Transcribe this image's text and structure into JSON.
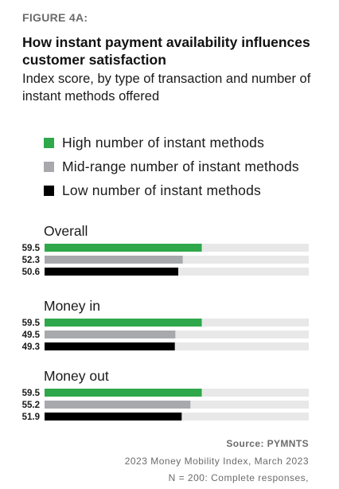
{
  "figure_label": "FIGURE 4A:",
  "title": "How instant payment availability influences customer satisfaction",
  "subtitle": "Index score, by type of transaction and number of instant methods offered",
  "colors": {
    "high": "#2ea84a",
    "mid": "#a7a9ac",
    "low": "#000000",
    "track": "#e8e8e8"
  },
  "legend": [
    {
      "label": "High number of instant methods",
      "color": "#2ea84a"
    },
    {
      "label": "Mid-range number of instant methods",
      "color": "#a7a9ac"
    },
    {
      "label": "Low number of instant methods",
      "color": "#000000"
    }
  ],
  "chart_data": {
    "type": "bar",
    "orientation": "horizontal",
    "xlim": [
      0,
      100
    ],
    "grid": false,
    "legend_position": "top",
    "groups": [
      {
        "label": "Overall",
        "values": [
          59.5,
          52.3,
          50.6
        ],
        "value_labels": [
          "59.5",
          "52.3",
          "50.6"
        ]
      },
      {
        "label": "Money in",
        "values": [
          59.5,
          49.5,
          49.3
        ],
        "value_labels": [
          "59.5",
          "49.5",
          "49.3"
        ]
      },
      {
        "label": "Money out",
        "values": [
          59.5,
          55.2,
          51.9
        ],
        "value_labels": [
          "59.5",
          "55.2",
          "51.9"
        ]
      }
    ],
    "series": [
      {
        "name": "High number of instant methods",
        "color": "#2ea84a"
      },
      {
        "name": "Mid-range number of instant methods",
        "color": "#a7a9ac"
      },
      {
        "name": "Low number of instant methods",
        "color": "#000000"
      }
    ]
  },
  "source": {
    "title": "Source: PYMNTS",
    "lines": [
      "2023 Money Mobility Index, March 2023",
      "N = 200: Complete responses,"
    ]
  }
}
